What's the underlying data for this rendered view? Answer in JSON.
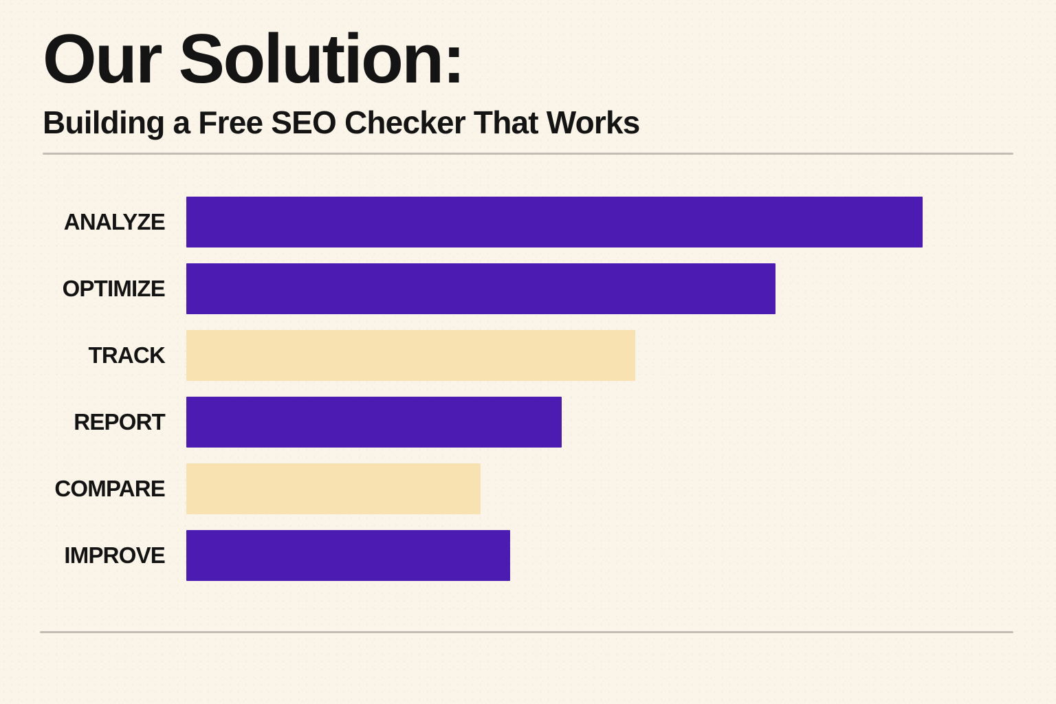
{
  "colors": {
    "background": "#FAF4E9",
    "text": "#141414",
    "divider": "#C1BDB5",
    "accent_purple": "#4C1CB2",
    "muted_cream": "#F8E2B2"
  },
  "header": {
    "title": "Our Solution:",
    "subtitle": "Building a Free SEO Checker That Works"
  },
  "chart_data": {
    "type": "bar",
    "orientation": "horizontal",
    "title": "Our Solution:",
    "subtitle": "Building a Free SEO Checker That Works",
    "categories": [
      "ANALYZE",
      "OPTIMIZE",
      "TRACK",
      "REPORT",
      "COMPARE",
      "IMPROVE"
    ],
    "values_percent_of_max": [
      100,
      80,
      61,
      51,
      40,
      44
    ],
    "bar_colors": [
      "#4C1CB2",
      "#4C1CB2",
      "#F8E2B2",
      "#4C1CB2",
      "#F8E2B2",
      "#4C1CB2"
    ],
    "xlabel": "",
    "ylabel": "",
    "axis_tick_labels": [],
    "data_labels_visible": false,
    "grid": false,
    "legend": false
  }
}
